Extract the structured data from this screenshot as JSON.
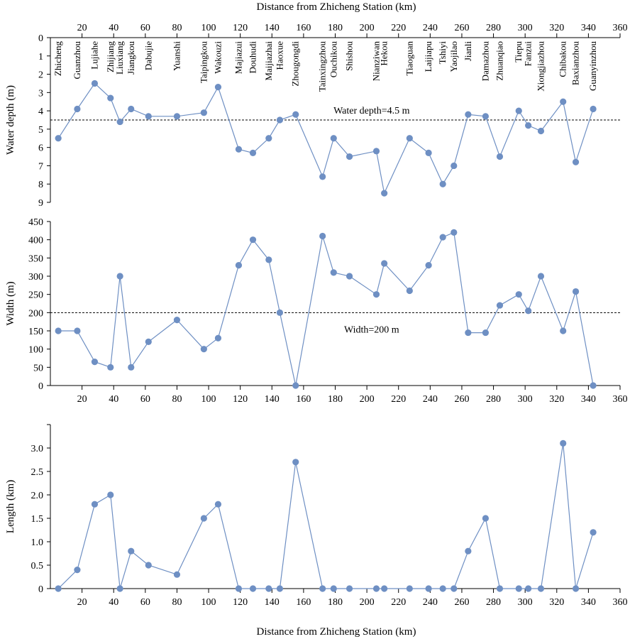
{
  "colors": {
    "series": "#6e8fc3",
    "axis": "#000000",
    "threshold": "#000000"
  },
  "top_axis_title": "Distance from Zhicheng Station (km)",
  "bottom_axis_title": "Distance from Zhicheng Station (km)",
  "chart_data": [
    {
      "type": "line",
      "name": "water-depth",
      "ylabel": "Water depth (m)",
      "y_inverted": true,
      "ylim": [
        0,
        9
      ],
      "yticks": [
        "0",
        "1",
        "2",
        "3",
        "4",
        "5",
        "6",
        "7",
        "8",
        "9"
      ],
      "xlim": [
        0,
        360
      ],
      "xticks": [
        "20",
        "40",
        "60",
        "80",
        "100",
        "120",
        "140",
        "160",
        "180",
        "200",
        "220",
        "240",
        "260",
        "280",
        "300",
        "320",
        "340",
        "360"
      ],
      "x_axis_position": "top",
      "threshold": {
        "value": 4.5,
        "label": "Water depth=4.5 m"
      },
      "stations": [
        "Zhicheng",
        "Guanzhou",
        "Lujiahe",
        "Zhijiang",
        "Liuxiang",
        "Jiangkou",
        "Dabujie",
        "Yuanshi",
        "Taipingkou",
        "Wakouzi",
        "Majiazui",
        "Douhudi",
        "Maijiazhai",
        "Haoxue",
        "Zhougongdi",
        "Tainxingzhou",
        "Ouchikou",
        "Shishou",
        "Nianziwan",
        "Hekou",
        "Tiaoguan",
        "Laijiapu",
        "Tshiyi",
        "Yaojilao",
        "Jianli",
        "Damazhou",
        "Zhuanqiao",
        "Tiepu",
        "Fanzui",
        "Xiongjiazhou",
        "Chibakou",
        "Baxianzhou",
        "Guanyinzhou"
      ],
      "x": [
        5,
        17,
        28,
        38,
        44,
        51,
        62,
        80,
        97,
        106,
        119,
        128,
        138,
        145,
        155,
        172,
        179,
        189,
        206,
        211,
        227,
        239,
        248,
        255,
        264,
        275,
        284,
        296,
        302,
        310,
        324,
        332,
        343
      ],
      "y": [
        5.5,
        3.9,
        2.5,
        3.3,
        4.6,
        3.9,
        4.3,
        4.3,
        4.1,
        2.7,
        6.1,
        6.3,
        5.5,
        4.5,
        4.2,
        7.6,
        5.5,
        6.5,
        6.2,
        8.5,
        5.5,
        6.3,
        8.0,
        7.0,
        4.2,
        4.3,
        6.5,
        4.0,
        4.8,
        5.1,
        3.5,
        6.8,
        3.9
      ]
    },
    {
      "type": "line",
      "name": "width",
      "ylabel": "Width (m)",
      "ylim": [
        0,
        450
      ],
      "yticks": [
        "0",
        "50",
        "100",
        "150",
        "200",
        "250",
        "300",
        "350",
        "400",
        "450"
      ],
      "xlim": [
        0,
        360
      ],
      "xticks": [
        "20",
        "40",
        "60",
        "80",
        "100",
        "120",
        "140",
        "160",
        "180",
        "200",
        "220",
        "240",
        "260",
        "280",
        "300",
        "320",
        "340",
        "360"
      ],
      "threshold": {
        "value": 200,
        "label": "Width=200 m"
      },
      "x": [
        5,
        17,
        28,
        38,
        44,
        51,
        62,
        80,
        97,
        106,
        119,
        128,
        138,
        145,
        155,
        172,
        179,
        189,
        206,
        211,
        227,
        239,
        248,
        255,
        264,
        275,
        284,
        296,
        302,
        310,
        324,
        332,
        343
      ],
      "y": [
        150,
        150,
        65,
        50,
        300,
        50,
        120,
        180,
        100,
        130,
        330,
        400,
        345,
        200,
        0,
        410,
        310,
        300,
        250,
        335,
        260,
        330,
        407,
        420,
        145,
        145,
        220,
        250,
        205,
        300,
        150,
        258,
        0
      ]
    },
    {
      "type": "line",
      "name": "length",
      "ylabel": "Length (km)",
      "ylim": [
        0,
        3.5
      ],
      "yticks": [
        "0",
        "0.5",
        "1.0",
        "1.5",
        "2.0",
        "2.5",
        "3.0"
      ],
      "xlim": [
        0,
        360
      ],
      "xticks": [
        "20",
        "40",
        "60",
        "80",
        "100",
        "120",
        "140",
        "160",
        "180",
        "200",
        "220",
        "240",
        "260",
        "280",
        "300",
        "320",
        "340",
        "360"
      ],
      "x": [
        5,
        17,
        28,
        38,
        44,
        51,
        62,
        80,
        97,
        106,
        119,
        128,
        138,
        145,
        155,
        172,
        179,
        189,
        206,
        211,
        227,
        239,
        248,
        255,
        264,
        275,
        284,
        296,
        302,
        310,
        324,
        332,
        343
      ],
      "y": [
        0,
        0.4,
        1.8,
        2.0,
        0,
        0.8,
        0.5,
        0.3,
        1.5,
        1.8,
        0,
        0,
        0,
        0,
        2.7,
        0,
        0,
        0,
        0,
        0,
        0,
        0,
        0,
        0,
        0.8,
        1.5,
        0,
        0,
        0,
        0,
        3.1,
        0,
        1.2
      ]
    }
  ]
}
